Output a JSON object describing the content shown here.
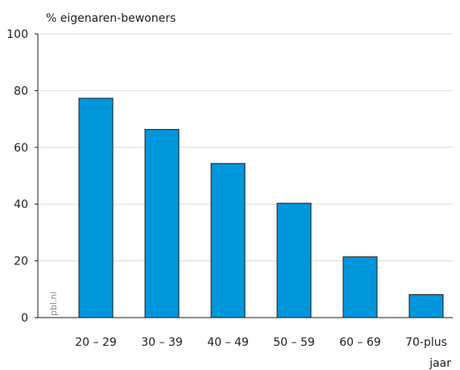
{
  "chart_data": {
    "type": "bar",
    "ylabel": "% eigenaren-bewoners",
    "xlabel": "jaar",
    "categories": [
      "20 – 29",
      "30 – 39",
      "40 – 49",
      "50 – 59",
      "60 – 69",
      "70-plus"
    ],
    "values": [
      77.3,
      66.3,
      54.3,
      40.3,
      21.4,
      8.1
    ],
    "ylim": [
      0,
      100
    ],
    "yticks": [
      "0",
      "20",
      "40",
      "60",
      "80",
      "100"
    ],
    "grid": true,
    "colors": {
      "bar": "#0096db"
    }
  },
  "watermark": "pbl.nl"
}
